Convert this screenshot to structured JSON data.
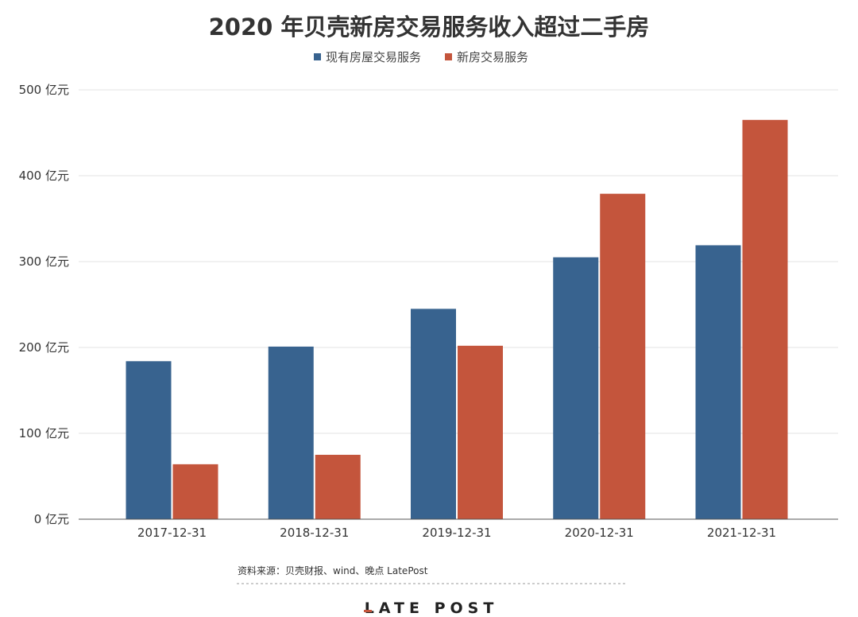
{
  "chart_data": {
    "type": "bar",
    "title": "2020 年贝壳新房交易服务收入超过二手房",
    "categories": [
      "2017-12-31",
      "2018-12-31",
      "2019-12-31",
      "2020-12-31",
      "2021-12-31"
    ],
    "series": [
      {
        "name": "现有房屋交易服务",
        "color": "#38638f",
        "values": [
          184,
          201,
          245,
          305,
          319
        ]
      },
      {
        "name": "新房交易服务",
        "color": "#c4553c",
        "values": [
          64,
          75,
          202,
          379,
          465
        ]
      }
    ],
    "y_tick_labels": [
      "0 亿元",
      "100 亿元",
      "200 亿元",
      "300 亿元",
      "400 亿元",
      "500 亿元"
    ],
    "ylim": [
      0,
      500
    ],
    "y_ticks": [
      0,
      100,
      200,
      300,
      400,
      500
    ],
    "grid": true,
    "legend_position": "top-center"
  },
  "footer": {
    "source": "资料来源：贝壳财报、wind、晚点 LatePost",
    "brand": "LATE POST",
    "brand_accent_color": "#c4553c"
  }
}
